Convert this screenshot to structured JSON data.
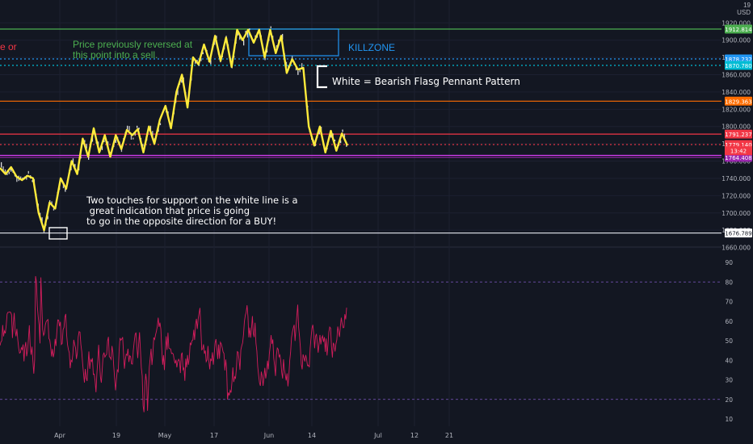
{
  "symbol": {
    "currency": "USD",
    "top_tick_cut": "19"
  },
  "annotations": {
    "red_partial": "e or",
    "green": "Price previously reversed at\nthis point into a sell.",
    "killzone": "KILLZONE",
    "pennant": "White = Bearish Flasg Pennant Pattern",
    "support": "Two touches for support on the white line is a\n great indication that price is going\nto go in the opposite direction for a BUY!"
  },
  "colors": {
    "background": "#131722",
    "price_line_yellow": "#ffeb3b",
    "killzone_blue": "#2196f3",
    "level_green": "#4caf50",
    "level_orange": "#ff6d00",
    "level_red": "#f23645",
    "level_purple": "#9c27b0",
    "level_magenta": "#e040fb",
    "rsi_line": "#e91e63"
  },
  "chart_data": [
    {
      "type": "line",
      "panel": "price",
      "x": [
        "Apr",
        "19",
        "May",
        "17",
        "Jun",
        "14",
        "Jul",
        "12",
        "21"
      ],
      "y_ticks": [
        1660,
        1680,
        1700,
        1720,
        1740,
        1760,
        1780,
        1800,
        1820,
        1840,
        1860,
        1880,
        1900,
        1920
      ],
      "y_tick_labels": [
        "1660.000",
        "1680.000",
        "1700.000",
        "1720.000",
        "1740.000",
        "1760.000",
        "1780.000",
        "1800.000",
        "1820.000",
        "1840.000",
        "1860.000",
        "1880.000",
        "1900.000",
        "1920.000"
      ],
      "ylim": [
        1652,
        1925
      ],
      "zigzag": [
        1752,
        1745,
        1753,
        1742,
        1738,
        1743,
        1740,
        1700,
        1680,
        1712,
        1705,
        1740,
        1728,
        1760,
        1745,
        1786,
        1765,
        1798,
        1770,
        1790,
        1765,
        1790,
        1774,
        1796,
        1790,
        1797,
        1770,
        1800,
        1780,
        1808,
        1824,
        1798,
        1840,
        1860,
        1822,
        1880,
        1872,
        1895,
        1875,
        1905,
        1876,
        1903,
        1869,
        1912,
        1900,
        1912,
        1897,
        1912,
        1880,
        1912,
        1885,
        1905,
        1862,
        1878,
        1866,
        1868,
        1800,
        1778,
        1800,
        1770,
        1795,
        1772,
        1792,
        1778
      ],
      "levels": [
        {
          "value": 1912.814,
          "label": "1912.814",
          "color": "#4caf50",
          "style": "solid"
        },
        {
          "value": 1878.232,
          "label": "1878.232",
          "color": "#2196f3",
          "style": "dotted"
        },
        {
          "value": 1870.78,
          "label": "1870.780",
          "color": "#00bcd4",
          "style": "dotted"
        },
        {
          "value": 1829.363,
          "label": "1829.363",
          "color": "#ff6d00",
          "style": "solid"
        },
        {
          "value": 1791.237,
          "label": "1791.237",
          "color": "#f23645",
          "style": "solid"
        },
        {
          "value": 1779.14,
          "label": "1779.140",
          "color": "#f23645",
          "style": "dotted"
        },
        {
          "value": 1766.634,
          "label": "1766.634",
          "color": "#e040fb",
          "style": "solid"
        },
        {
          "value": 1764.408,
          "label": "1764.408",
          "color": "#9c27b0",
          "style": "solid"
        },
        {
          "value": 1676.789,
          "label": "1676.789",
          "color": "#d1d4dc",
          "style": "solid"
        }
      ],
      "countdown_label": "13:42"
    },
    {
      "type": "line",
      "panel": "rsi",
      "y_ticks": [
        10,
        20,
        30,
        40,
        50,
        60,
        70,
        80,
        90
      ],
      "y_tick_labels": [
        "10",
        "20",
        "30",
        "40",
        "50",
        "60",
        "70",
        "80",
        "90"
      ],
      "ylim": [
        5,
        95
      ],
      "bands": [
        20,
        80
      ]
    }
  ]
}
